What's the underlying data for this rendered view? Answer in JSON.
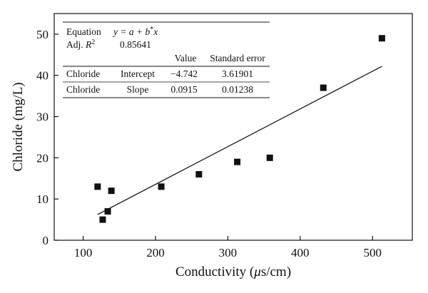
{
  "chart_data": {
    "type": "scatter",
    "xlabel": "Conductivity (μs/cm)",
    "ylabel": "Chloride (mg/L)",
    "xlim": [
      60,
      555
    ],
    "ylim": [
      0,
      55
    ],
    "xticks": [
      "100",
      "200",
      "300",
      "400",
      "500"
    ],
    "yticks": [
      "0",
      "10",
      "20",
      "30",
      "40",
      "50"
    ],
    "grid": false,
    "points": [
      {
        "x": 120,
        "y": 13
      },
      {
        "x": 127,
        "y": 5
      },
      {
        "x": 134,
        "y": 7
      },
      {
        "x": 139,
        "y": 12
      },
      {
        "x": 208,
        "y": 13
      },
      {
        "x": 260,
        "y": 16
      },
      {
        "x": 313,
        "y": 19
      },
      {
        "x": 358,
        "y": 20
      },
      {
        "x": 432,
        "y": 37
      },
      {
        "x": 513,
        "y": 49
      }
    ],
    "fit": {
      "intercept": -4.742,
      "slope": 0.0915,
      "x_start": 120,
      "x_end": 513
    },
    "fit_table": {
      "equation_label": "Equation",
      "equation": "y = a + b*x",
      "adj_r2_label": "Adj. R²",
      "adj_r2_value": "0.85641",
      "col_value": "Value",
      "col_stderr": "Standard error",
      "rows": [
        {
          "name": "Chloride",
          "param": "Intercept",
          "value": "−4.742",
          "stderr": "3.61901"
        },
        {
          "name": "Chloride",
          "param": "Slope",
          "value": "0.0915",
          "stderr": "0.01238"
        }
      ]
    }
  }
}
